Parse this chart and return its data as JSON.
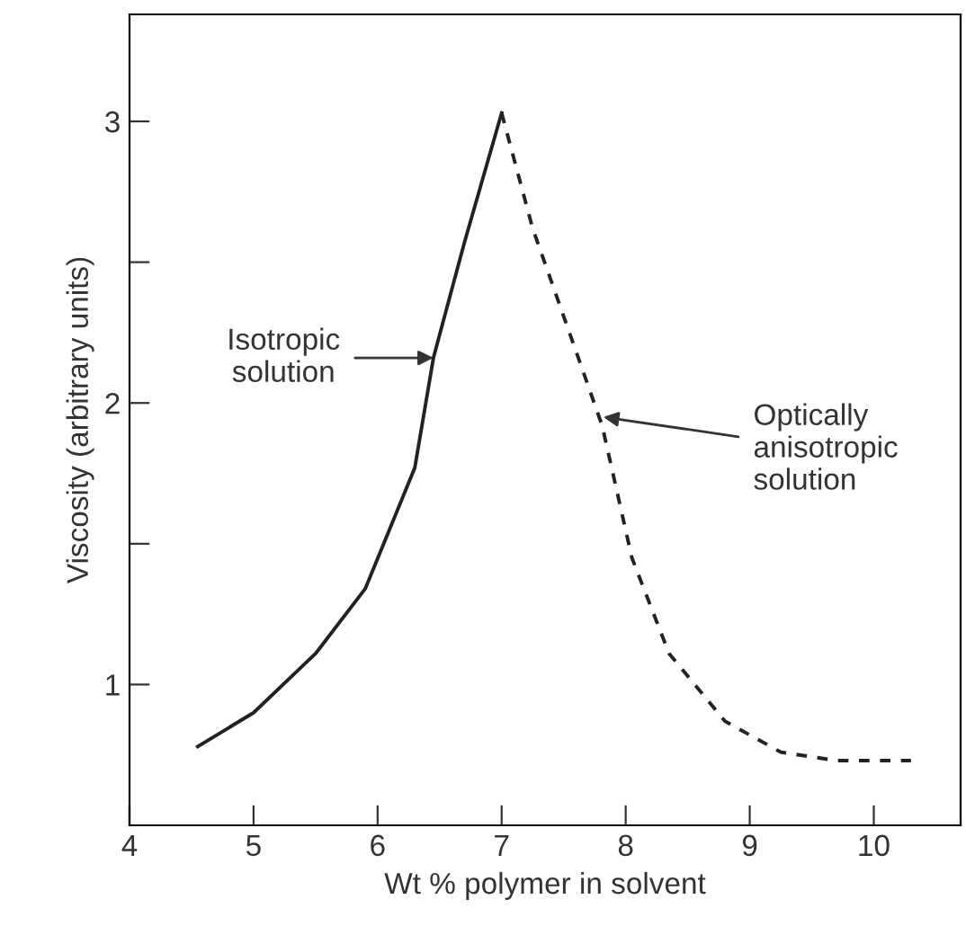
{
  "chart_data": {
    "type": "line",
    "xlabel": "Wt % polymer in solvent",
    "ylabel": "Viscosity (arbitrary units)",
    "xlim": [
      4,
      10.7
    ],
    "ylim": [
      0.5,
      3.38
    ],
    "xticks": [
      4,
      5,
      6,
      7,
      8,
      9,
      10
    ],
    "yticks": [
      1,
      {
        "value": 1.5,
        "label": null
      },
      2,
      {
        "value": 2.5,
        "label": null
      },
      3
    ],
    "grid": false,
    "marker": "none",
    "series": [
      {
        "color": "#222222",
        "line_style": "solid",
        "x": [
          4.55,
          5.0,
          5.5,
          5.9,
          6.3,
          6.45,
          6.7,
          7.0
        ],
        "values": [
          0.78,
          0.9,
          1.11,
          1.34,
          1.77,
          2.16,
          2.57,
          3.03
        ]
      },
      {
        "color": "#222222",
        "line_style": "dashed",
        "x": [
          7.0,
          7.25,
          7.81,
          8.05,
          8.35,
          8.8,
          9.25,
          9.7,
          10.3
        ],
        "values": [
          3.03,
          2.62,
          1.92,
          1.45,
          1.11,
          0.87,
          0.76,
          0.73,
          0.73
        ]
      }
    ],
    "annotations": [
      {
        "text": "Isotropic\nsolution",
        "x": 6.45,
        "y": 2.16
      },
      {
        "text": "Optically\nanisotropic\nsolution",
        "x": 7.82,
        "y": 1.95
      }
    ]
  }
}
